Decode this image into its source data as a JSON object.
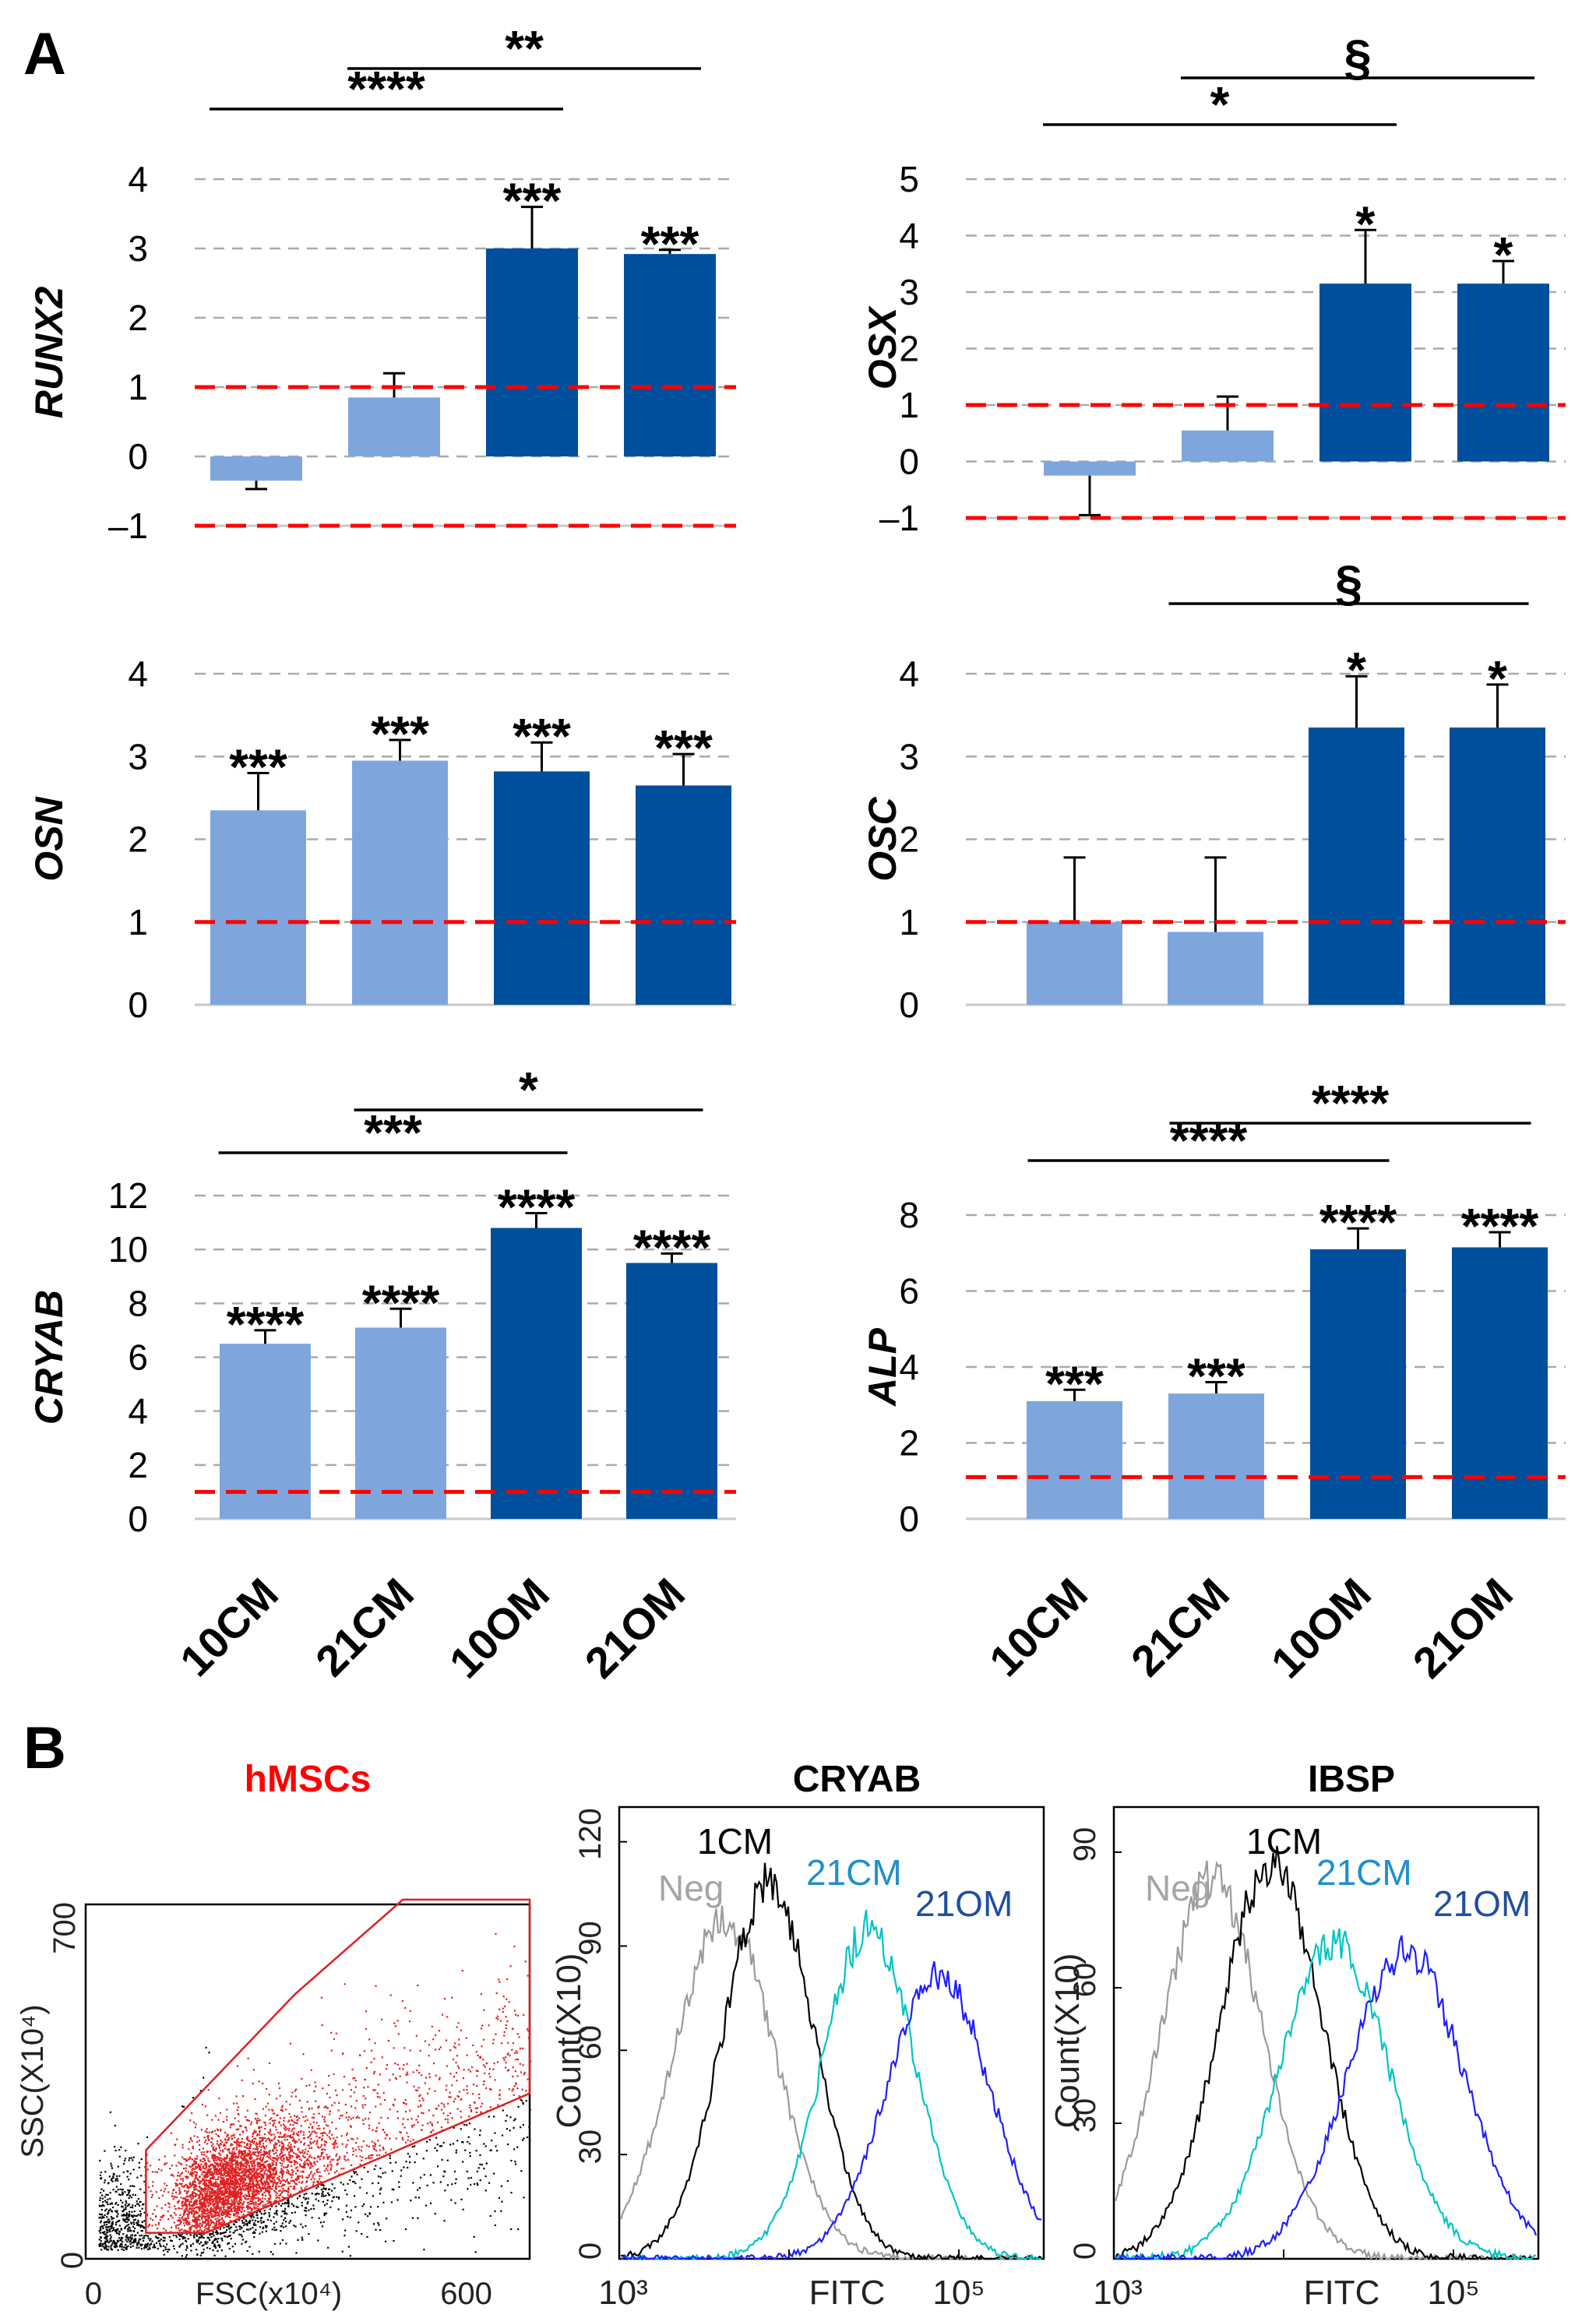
{
  "panel_labels": [
    "A",
    "B"
  ],
  "colors": {
    "cm_bar": "#7ea6dc",
    "om_bar": "#004f9c",
    "reference_line": "#ff0000",
    "gridline": "#aaaaaa",
    "gate": "#e02020",
    "neg": "#9a9a9a",
    "cm1": "#000000",
    "cm21": "#00c4c4",
    "om21": "#1e1eff",
    "cm21_label": "#1f8fcf",
    "om21_label": "#1f4fa0",
    "hmsc_title": "#ff0000"
  },
  "chart_data": [
    {
      "id": "runx2",
      "type": "bar",
      "ylabel": "RUNX2",
      "categories": [
        "10CM",
        "21CM",
        "10OM",
        "21OM"
      ],
      "values": [
        -0.35,
        0.85,
        3.0,
        2.92
      ],
      "errors": [
        0.12,
        0.35,
        0.6,
        0.06
      ],
      "ylim": [
        -1,
        4
      ],
      "yticks": [
        -1,
        0,
        1,
        2,
        3,
        4
      ],
      "ytick_labels": [
        "–1",
        "0",
        "1",
        "2",
        "3",
        "4"
      ],
      "reference_lines": [
        1,
        -1
      ],
      "bar_labels": [
        "",
        "",
        "***",
        "***"
      ],
      "brackets": [
        {
          "from": 0,
          "to": 2,
          "label": "****",
          "level": 1
        },
        {
          "from": 1,
          "to": 3,
          "label": "**",
          "level": 2
        }
      ]
    },
    {
      "id": "osx",
      "type": "bar",
      "ylabel": "OSX",
      "categories": [
        "10CM",
        "21CM",
        "10OM",
        "21OM"
      ],
      "values": [
        -0.25,
        0.55,
        3.15,
        3.15
      ],
      "errors": [
        0.7,
        0.6,
        0.95,
        0.4
      ],
      "ylim": [
        -1,
        5
      ],
      "yticks": [
        -1,
        0,
        1,
        2,
        3,
        4,
        5
      ],
      "ytick_labels": [
        "–1",
        "0",
        "1",
        "2",
        "3",
        "4",
        "5"
      ],
      "reference_lines": [
        1,
        -1
      ],
      "bar_labels": [
        "",
        "",
        "*",
        "*"
      ],
      "brackets": [
        {
          "from": 0,
          "to": 2,
          "label": "*",
          "level": 1
        },
        {
          "from": 1,
          "to": 3,
          "label": "§",
          "level": 2
        }
      ]
    },
    {
      "id": "osn",
      "type": "bar",
      "ylabel": "OSN",
      "categories": [
        "10CM",
        "21CM",
        "10OM",
        "21OM"
      ],
      "values": [
        2.35,
        2.95,
        2.82,
        2.65
      ],
      "errors": [
        0.45,
        0.25,
        0.35,
        0.38
      ],
      "ylim": [
        0,
        4
      ],
      "yticks": [
        0,
        1,
        2,
        3,
        4
      ],
      "ytick_labels": [
        "0",
        "1",
        "2",
        "3",
        "4"
      ],
      "reference_lines": [
        1
      ],
      "bar_labels": [
        "***",
        "***",
        "***",
        "***"
      ],
      "brackets": []
    },
    {
      "id": "osc",
      "type": "bar",
      "ylabel": "OSC",
      "categories": [
        "10CM",
        "21CM",
        "10OM",
        "21OM"
      ],
      "values": [
        1.0,
        0.88,
        3.35,
        3.35
      ],
      "errors": [
        0.78,
        0.9,
        0.62,
        0.52
      ],
      "ylim": [
        0,
        4
      ],
      "yticks": [
        0,
        1,
        2,
        3,
        4
      ],
      "ytick_labels": [
        "0",
        "1",
        "2",
        "3",
        "4"
      ],
      "reference_lines": [
        1
      ],
      "bar_labels": [
        "",
        "",
        "*",
        "*"
      ],
      "brackets": [
        {
          "from": 1,
          "to": 3,
          "label": "§",
          "level": 1
        }
      ]
    },
    {
      "id": "cryab",
      "type": "bar",
      "ylabel": "CRYAB",
      "categories": [
        "10CM",
        "21CM",
        "10OM",
        "21OM"
      ],
      "values": [
        6.5,
        7.1,
        10.8,
        9.5
      ],
      "errors": [
        0.5,
        0.7,
        0.55,
        0.35
      ],
      "ylim": [
        0,
        12
      ],
      "yticks": [
        0,
        2,
        4,
        6,
        8,
        10,
        12
      ],
      "ytick_labels": [
        "0",
        "2",
        "4",
        "6",
        "8",
        "10",
        "12"
      ],
      "reference_lines": [
        1
      ],
      "bar_labels": [
        "****",
        "****",
        "****",
        "****"
      ],
      "brackets": [
        {
          "from": 0,
          "to": 2,
          "label": "***",
          "level": 1
        },
        {
          "from": 1,
          "to": 3,
          "label": "*",
          "level": 2
        }
      ]
    },
    {
      "id": "alp",
      "type": "bar",
      "ylabel": "ALP",
      "categories": [
        "10CM",
        "21CM",
        "10OM",
        "21OM"
      ],
      "values": [
        3.1,
        3.3,
        7.1,
        7.15
      ],
      "errors": [
        0.3,
        0.3,
        0.55,
        0.4
      ],
      "ylim": [
        0,
        8
      ],
      "yticks": [
        0,
        2,
        4,
        6,
        8
      ],
      "ytick_labels": [
        "0",
        "2",
        "4",
        "6",
        "8"
      ],
      "reference_lines": [
        1.1
      ],
      "bar_labels": [
        "***",
        "***",
        "****",
        "****"
      ],
      "brackets": [
        {
          "from": 0,
          "to": 2,
          "label": "****",
          "level": 1
        },
        {
          "from": 1,
          "to": 3,
          "label": "****",
          "level": 2
        }
      ]
    },
    {
      "id": "scatter",
      "type": "scatter",
      "title": "hMSCs",
      "xlabel": "FSC(x10⁴)",
      "ylabel": "SSC(X10⁴)",
      "xlim": [
        0,
        700
      ],
      "ylim": [
        0,
        750
      ],
      "xtick_labels": [
        "0",
        "600"
      ],
      "ytick_labels": [
        "0",
        "700"
      ],
      "gate_polygon": [
        [
          95,
          55
        ],
        [
          190,
          55
        ],
        [
          700,
          350
        ],
        [
          700,
          760
        ],
        [
          500,
          760
        ],
        [
          330,
          560
        ],
        [
          95,
          230
        ]
      ]
    },
    {
      "id": "cryab_hist",
      "type": "histogram",
      "title": "CRYAB",
      "xlabel": "FITC",
      "ylabel": "Count(X10)",
      "x_log": true,
      "xlim_log10": [
        3,
        5.5
      ],
      "xtick_labels": [
        "10³",
        "10⁵"
      ],
      "ylim": [
        0,
        130
      ],
      "yticks": [
        0,
        30,
        60,
        90,
        120
      ],
      "ytick_labels": [
        "0",
        "30",
        "60",
        "90",
        "120"
      ],
      "series": [
        {
          "name": "Neg",
          "center_log10": 3.62,
          "width_log10": 0.3,
          "peak": 98
        },
        {
          "name": "1CM",
          "center_log10": 3.88,
          "width_log10": 0.27,
          "peak": 108
        },
        {
          "name": "21CM",
          "center_log10": 4.47,
          "width_log10": 0.27,
          "peak": 95
        },
        {
          "name": "21OM",
          "center_log10": 4.88,
          "width_log10": 0.3,
          "peak": 82
        }
      ]
    },
    {
      "id": "ibsp_hist",
      "type": "histogram",
      "title": "IBSP",
      "xlabel": "FITC",
      "ylabel": "Count(X10)",
      "x_log": true,
      "xlim_log10": [
        3,
        5.5
      ],
      "xtick_labels": [
        "10³",
        "10⁵"
      ],
      "ylim": [
        0,
        100
      ],
      "yticks": [
        0,
        30,
        60,
        90
      ],
      "ytick_labels": [
        "0",
        "30",
        "60",
        "90"
      ],
      "series": [
        {
          "name": "Neg",
          "center_log10": 3.58,
          "width_log10": 0.3,
          "peak": 84
        },
        {
          "name": "1CM",
          "center_log10": 3.93,
          "width_log10": 0.3,
          "peak": 88
        },
        {
          "name": "21CM",
          "center_log10": 4.3,
          "width_log10": 0.32,
          "peak": 70
        },
        {
          "name": "21OM",
          "center_log10": 4.72,
          "width_log10": 0.34,
          "peak": 68
        }
      ]
    }
  ]
}
